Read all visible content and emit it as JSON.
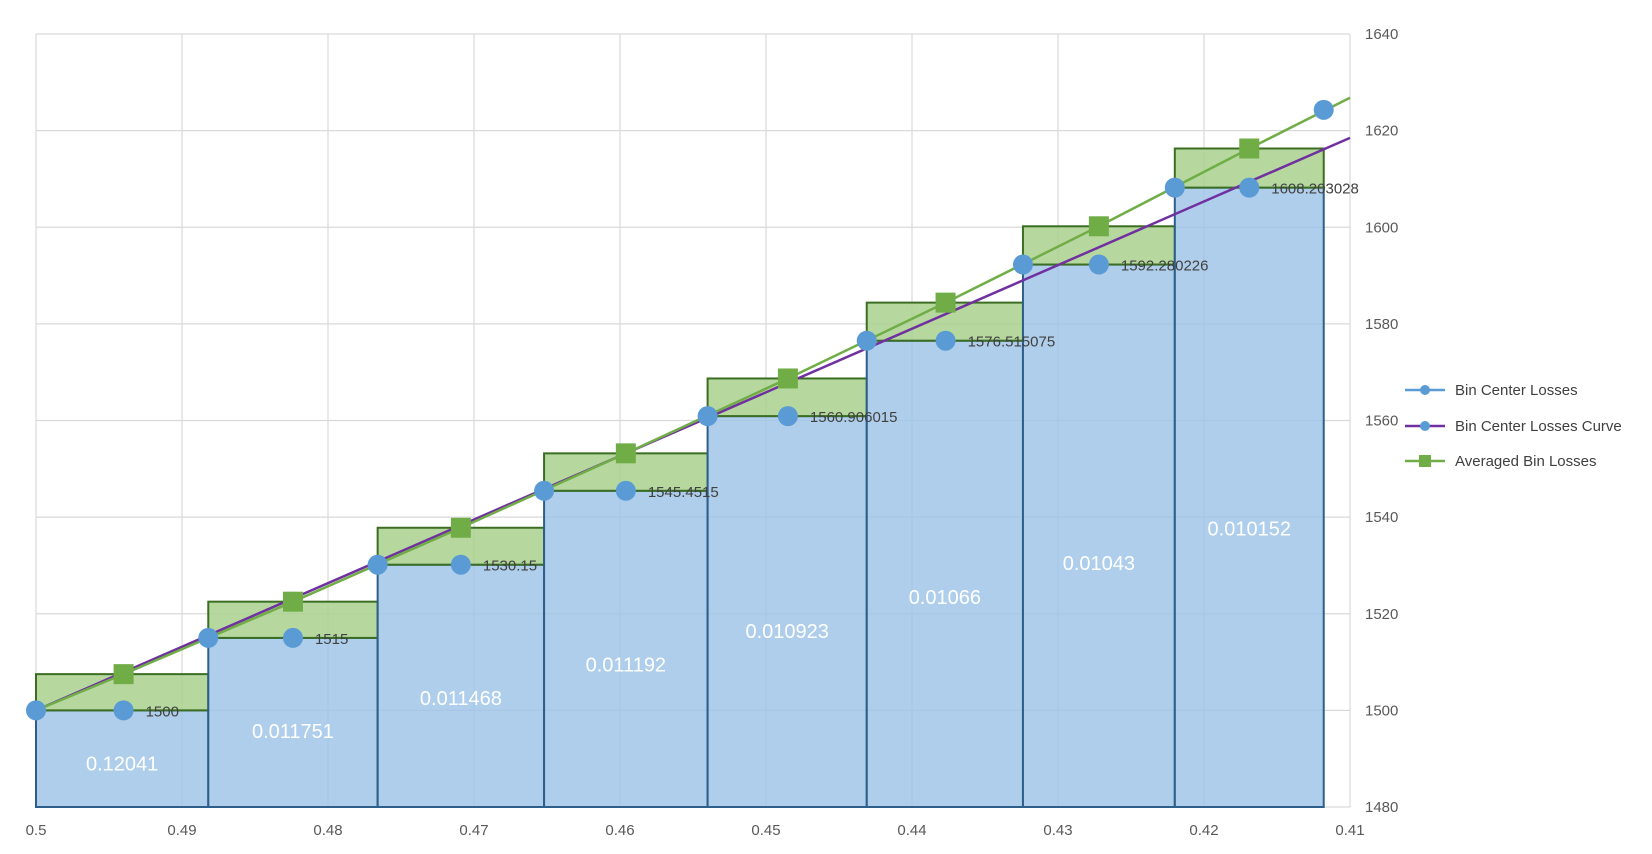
{
  "chart_data": {
    "type": "line",
    "xlim": [
      0.5,
      0.41
    ],
    "x_reversed": true,
    "ylim": [
      1480,
      1640
    ],
    "x_ticks": [
      "0.5",
      "0.49",
      "0.48",
      "0.47",
      "0.46",
      "0.45",
      "0.44",
      "0.43",
      "0.42",
      "0.41"
    ],
    "y_ticks": [
      "1640",
      "1620",
      "1600",
      "1580",
      "1560",
      "1540",
      "1520",
      "1500",
      "1480"
    ],
    "grid": true,
    "y_axis_side": "right",
    "legend_position": "right",
    "bins": [
      {
        "x_start": 0.5,
        "x_end": 0.4882,
        "low": 1500,
        "high": 1507.5,
        "label": "0.12041"
      },
      {
        "x_start": 0.4882,
        "x_end": 0.4766,
        "low": 1515,
        "high": 1522.5,
        "label": "0.011751"
      },
      {
        "x_start": 0.4766,
        "x_end": 0.4652,
        "low": 1530.15,
        "high": 1537.8,
        "label": "0.011468"
      },
      {
        "x_start": 0.4652,
        "x_end": 0.454,
        "low": 1545.4515,
        "high": 1553.2,
        "label": "0.011192"
      },
      {
        "x_start": 0.454,
        "x_end": 0.4431,
        "low": 1560.906015,
        "high": 1568.7,
        "label": "0.010923"
      },
      {
        "x_start": 0.4431,
        "x_end": 0.4324,
        "low": 1576.515075,
        "high": 1584.4,
        "label": "0.01066"
      },
      {
        "x_start": 0.4324,
        "x_end": 0.422,
        "low": 1592.280226,
        "high": 1600.2,
        "label": "0.01043"
      },
      {
        "x_start": 0.422,
        "x_end": 0.4118,
        "low": 1608.203028,
        "high": 1616.3,
        "label": "0.010152"
      }
    ],
    "series": [
      {
        "name": "Bin Center Losses",
        "marker": "circle",
        "color": "#5b9bd5",
        "points": [
          [
            0.5,
            1500
          ],
          [
            0.494,
            1500
          ],
          [
            0.4882,
            1515
          ],
          [
            0.4824,
            1515
          ],
          [
            0.4766,
            1530.15
          ],
          [
            0.4709,
            1530.15
          ],
          [
            0.4652,
            1545.4515
          ],
          [
            0.4596,
            1545.4515
          ],
          [
            0.454,
            1560.906015
          ],
          [
            0.4485,
            1560.906015
          ],
          [
            0.4431,
            1576.515075
          ],
          [
            0.4377,
            1576.515075
          ],
          [
            0.4324,
            1592.280226
          ],
          [
            0.4272,
            1592.280226
          ],
          [
            0.422,
            1608.203028
          ],
          [
            0.4169,
            1608.203028
          ],
          [
            0.4118,
            1624.3
          ]
        ],
        "labels": [
          {
            "x": 0.494,
            "y": 1500,
            "text": "1500"
          },
          {
            "x": 0.4824,
            "y": 1515,
            "text": "1515"
          },
          {
            "x": 0.4709,
            "y": 1530.15,
            "text": "1530.15"
          },
          {
            "x": 0.4596,
            "y": 1545.4515,
            "text": "1545.4515"
          },
          {
            "x": 0.4485,
            "y": 1560.906015,
            "text": "1560.906015"
          },
          {
            "x": 0.4377,
            "y": 1576.515075,
            "text": "1576.515075"
          },
          {
            "x": 0.4272,
            "y": 1592.280226,
            "text": "1592.280226"
          },
          {
            "x": 0.4169,
            "y": 1608.203028,
            "text": "1608.203028"
          }
        ]
      },
      {
        "name": "Bin Center Losses Curve",
        "marker": "circle",
        "color": "#7030a0",
        "points": [
          [
            0.5,
            1500
          ],
          [
            0.41,
            1618.5
          ]
        ]
      },
      {
        "name": "Averaged Bin Losses",
        "marker": "square",
        "color": "#70ad47",
        "points": [
          [
            0.5,
            1500
          ],
          [
            0.494,
            1507.5
          ],
          [
            0.4824,
            1522.5
          ],
          [
            0.4709,
            1537.8
          ],
          [
            0.4596,
            1553.2
          ],
          [
            0.4485,
            1568.7
          ],
          [
            0.4377,
            1584.4
          ],
          [
            0.4272,
            1600.2
          ],
          [
            0.4169,
            1616.3
          ],
          [
            0.41,
            1626.8
          ]
        ],
        "marker_points": [
          [
            0.494,
            1507.5
          ],
          [
            0.4824,
            1522.5
          ],
          [
            0.4709,
            1537.8
          ],
          [
            0.4596,
            1553.2
          ],
          [
            0.4485,
            1568.7
          ],
          [
            0.4377,
            1584.4
          ],
          [
            0.4272,
            1600.2
          ],
          [
            0.4169,
            1616.3
          ]
        ]
      }
    ]
  },
  "legend": {
    "items": [
      {
        "label": "Bin Center Losses"
      },
      {
        "label": "Bin Center Losses Curve"
      },
      {
        "label": "Averaged Bin Losses"
      }
    ]
  }
}
